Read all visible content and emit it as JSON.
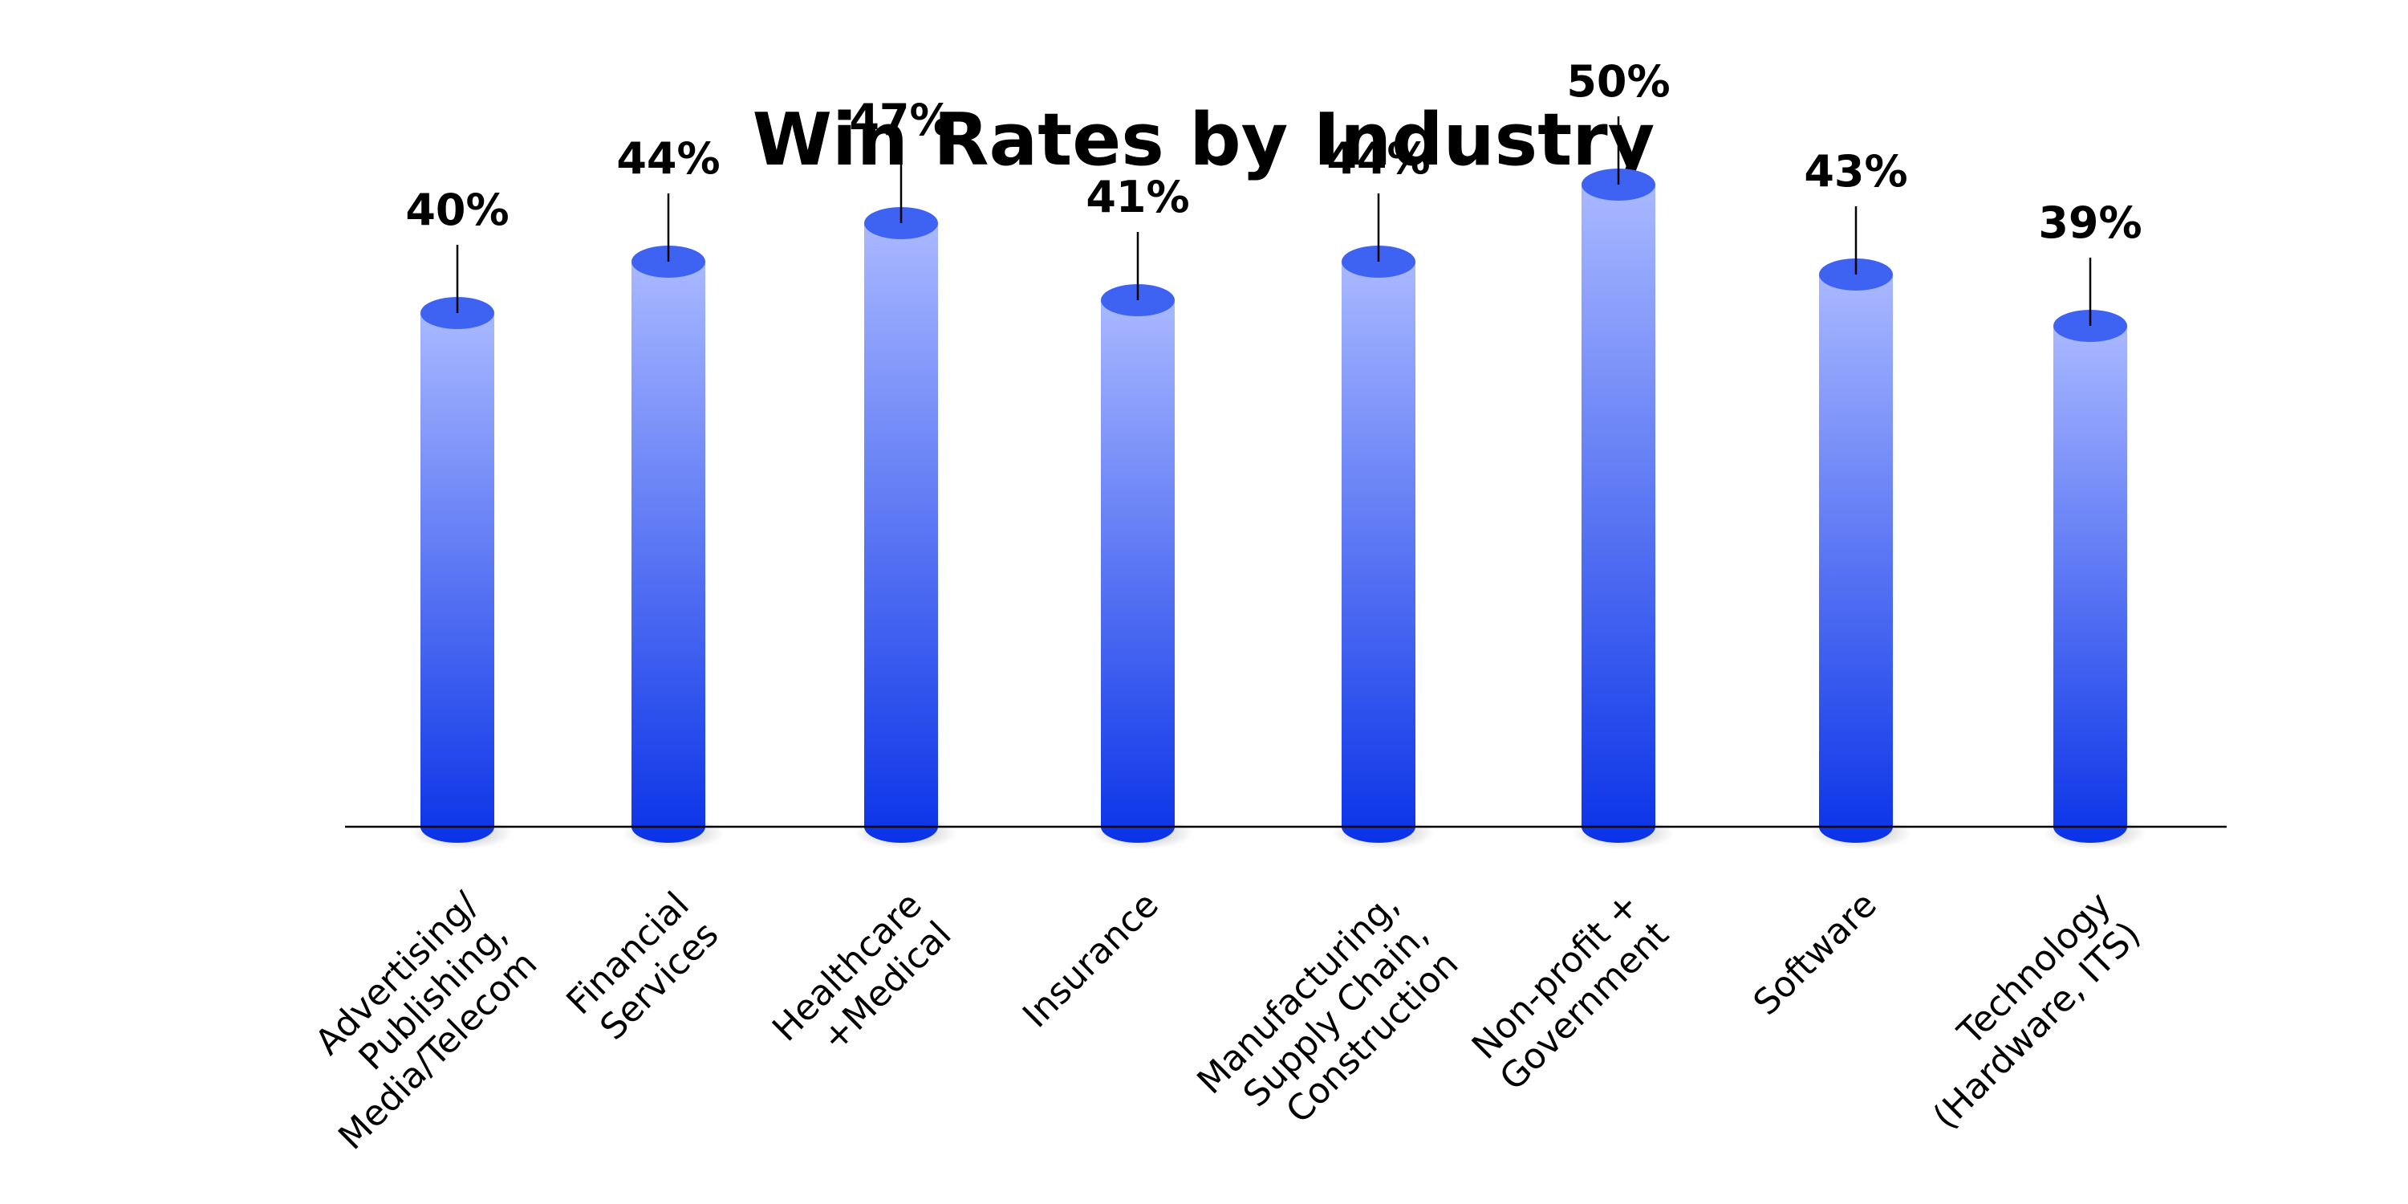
{
  "chart_data": {
    "type": "bar",
    "title": "Win Rates by Industry",
    "categories": [
      [
        "Advertising/",
        "Publishing,",
        "Media/Telecom"
      ],
      [
        "Financial",
        "Services"
      ],
      [
        "Healthcare",
        "+Medical"
      ],
      [
        "Insurance"
      ],
      [
        "Manufacturing,",
        "Supply Chain,",
        "Construction"
      ],
      [
        "Non-profit +",
        "Government"
      ],
      [
        "Software"
      ],
      [
        "Technology",
        "(Hardware, ITS)"
      ]
    ],
    "values": [
      40,
      44,
      47,
      41,
      44,
      50,
      43,
      39
    ],
    "value_labels": [
      "40%",
      "44%",
      "47%",
      "41%",
      "44%",
      "50%",
      "43%",
      "39%"
    ],
    "xlabel": "",
    "ylabel": "",
    "ylim": [
      0,
      50
    ],
    "grid": false,
    "legend": "none",
    "colors": {
      "bar_top": "#A9B8FF",
      "bar_bottom": "#0A33E8",
      "bar_cap": "#3E63F2",
      "text": "#000000",
      "axis": "#000000"
    }
  }
}
